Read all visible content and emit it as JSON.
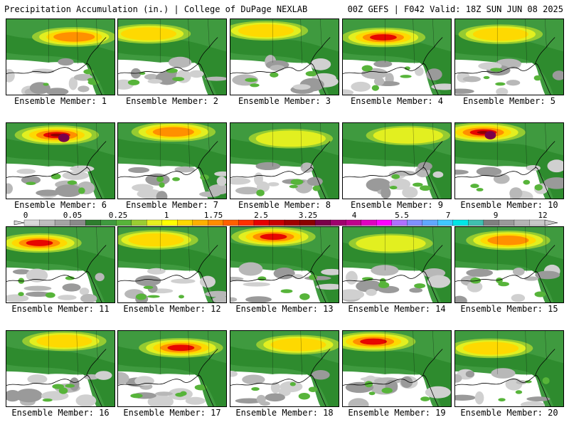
{
  "header": {
    "title": "Precipitation Accumulation (in.) | College of DuPage NEXLAB",
    "run_info": "00Z GEFS | F042 Valid: 18Z SUN JUN 08 2025"
  },
  "legend": {
    "tick_labels": [
      "0",
      "0.05",
      "0.25",
      "1",
      "1.75",
      "2.5",
      "3.25",
      "4",
      "5.5",
      "7",
      "9",
      "12"
    ],
    "colors": [
      "#d8d8d8",
      "#bebebe",
      "#a4a4a4",
      "#8a8a8a",
      "#2e7d2e",
      "#3f9a3f",
      "#57b43a",
      "#9acd32",
      "#e6f020",
      "#ffff00",
      "#ffd700",
      "#ffb000",
      "#ff8c00",
      "#ff6000",
      "#ff3000",
      "#e60000",
      "#c80000",
      "#a00000",
      "#8b0000",
      "#7a004a",
      "#a0006e",
      "#c0008c",
      "#e000c0",
      "#ff00ff",
      "#b070ff",
      "#8090ff",
      "#60a8ff",
      "#40c8ff",
      "#00e6e6",
      "#40c0b0",
      "#808080",
      "#9a9a9a",
      "#b4b4b4",
      "#c8c8c8"
    ]
  },
  "members": [
    {
      "label": "Ensemble Member: 1",
      "intensity": 2
    },
    {
      "label": "Ensemble Member: 2",
      "intensity": 1
    },
    {
      "label": "Ensemble Member: 3",
      "intensity": 1
    },
    {
      "label": "Ensemble Member: 4",
      "intensity": 3
    },
    {
      "label": "Ensemble Member: 5",
      "intensity": 1
    },
    {
      "label": "Ensemble Member: 6",
      "intensity": 4
    },
    {
      "label": "Ensemble Member: 7",
      "intensity": 2
    },
    {
      "label": "Ensemble Member: 8",
      "intensity": 0
    },
    {
      "label": "Ensemble Member: 9",
      "intensity": 0
    },
    {
      "label": "Ensemble Member: 10",
      "intensity": 4
    },
    {
      "label": "Ensemble Member: 11",
      "intensity": 3
    },
    {
      "label": "Ensemble Member: 12",
      "intensity": 1
    },
    {
      "label": "Ensemble Member: 13",
      "intensity": 3
    },
    {
      "label": "Ensemble Member: 14",
      "intensity": 0
    },
    {
      "label": "Ensemble Member: 15",
      "intensity": 2
    },
    {
      "label": "Ensemble Member: 16",
      "intensity": 1
    },
    {
      "label": "Ensemble Member: 17",
      "intensity": 3
    },
    {
      "label": "Ensemble Member: 18",
      "intensity": 1
    },
    {
      "label": "Ensemble Member: 19",
      "intensity": 3
    },
    {
      "label": "Ensemble Member: 20",
      "intensity": 1
    }
  ]
}
